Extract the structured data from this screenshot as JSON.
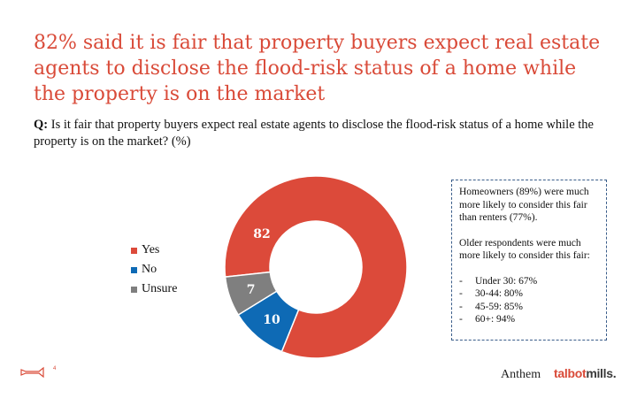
{
  "slide": {
    "title": "82% said it is fair that property buyers expect real estate agents to disclose the flood-risk status of a home while the property is on the market",
    "question_prefix": "Q:",
    "question_text": "Is it fair that property buyers expect real estate agents to disclose the flood-risk status of a home while the property is on the market? (%)",
    "page_number": "4"
  },
  "chart_data": {
    "type": "pie",
    "variant": "donut",
    "categories": [
      "Yes",
      "No",
      "Unsure"
    ],
    "values": [
      82,
      10,
      7
    ],
    "colors": [
      "#dc4a3a",
      "#0e6ab5",
      "#7f7f7f"
    ],
    "data_labels": [
      "82",
      "10",
      "7"
    ],
    "legend_position": "left"
  },
  "note": {
    "paragraph1": "Homeowners (89%) were much more likely to consider this fair than renters (77%).",
    "paragraph2": "Older respondents were much more likely to consider this fair:",
    "items": [
      {
        "dash": "-",
        "text": "Under 30: 67%"
      },
      {
        "dash": "-",
        "text": "30-44: 80%"
      },
      {
        "dash": "-",
        "text": "45-59: 85%"
      },
      {
        "dash": "-",
        "text": "60+: 94%"
      }
    ]
  },
  "footer": {
    "brand1": "Anthem",
    "brand2_main": "talbot",
    "brand2_accent": "mills."
  }
}
